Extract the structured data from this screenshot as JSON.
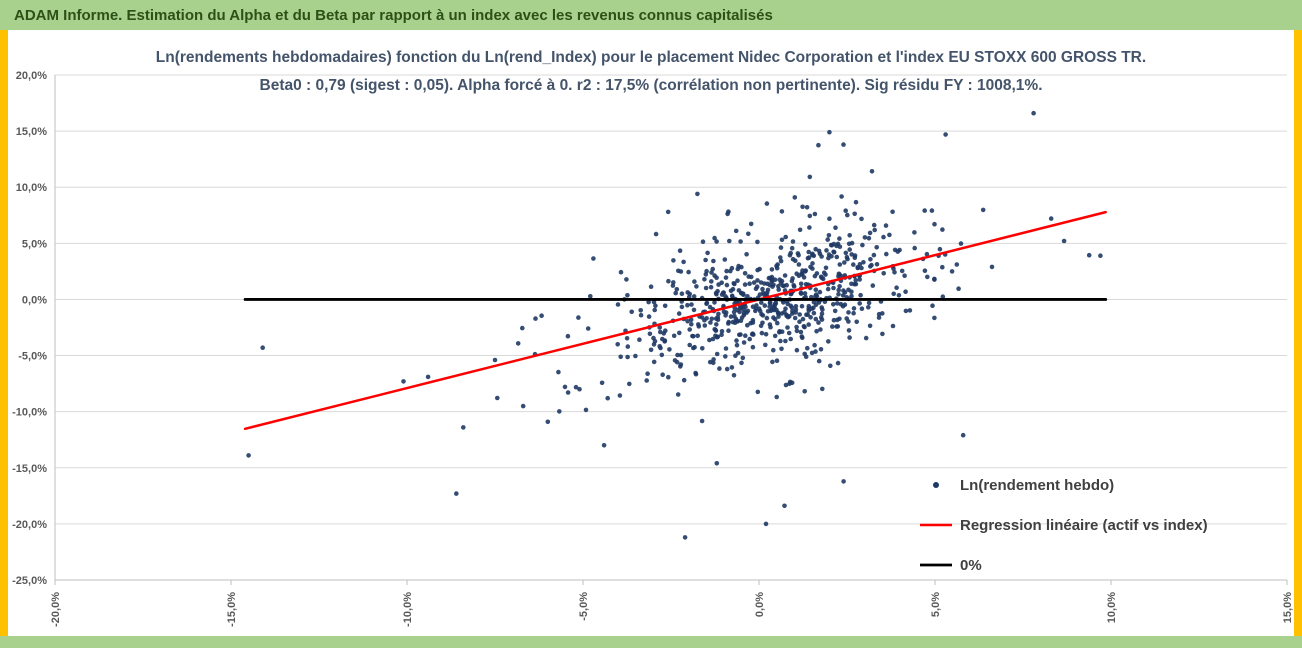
{
  "header": {
    "title": "ADAM Informe. Estimation du Alpha et du Beta par rapport à un index avec les revenus connus capitalisés"
  },
  "colors": {
    "header_bg": "#a9d18e",
    "header_text": "#2d5016",
    "side_strip": "#ffc000",
    "footer_bg": "#a9d18e",
    "title_text": "#44546a",
    "axis_text": "#595959",
    "legend_text": "#404040",
    "gridline": "#d9d9d9",
    "axis_line": "#bfbfbf",
    "point": "#1f3864",
    "regression": "#ff0000",
    "zero_line": "#000000"
  },
  "chart_data": {
    "type": "scatter",
    "title_line1": "Ln(rendements hebdomadaires) fonction du Ln(rend_Index) pour le placement Nidec Corporation et l'index EU STOXX 600 GROSS TR.",
    "title_line2": "Beta0 : 0,79 (sigest : 0,05). Alpha forcé à 0. r2 : 17,5% (corrélation non pertinente). Sig résidu FY : 1008,1%.",
    "xlabel": "",
    "ylabel": "",
    "grid": "horizontal",
    "x_axis": {
      "min": -20,
      "max": 15,
      "tick_step": 5,
      "ticks": [
        {
          "value": -20,
          "label": "-20,0%"
        },
        {
          "value": -15,
          "label": "-15,0%"
        },
        {
          "value": -10,
          "label": "-10,0%"
        },
        {
          "value": -5,
          "label": "-5,0%"
        },
        {
          "value": 0,
          "label": "0,0%"
        },
        {
          "value": 5,
          "label": "5,0%"
        },
        {
          "value": 10,
          "label": "10,0%"
        },
        {
          "value": 15,
          "label": "15,0%"
        }
      ]
    },
    "y_axis": {
      "min": -25,
      "max": 20,
      "tick_step": 5,
      "ticks": [
        {
          "value": 20,
          "label": "20,0%"
        },
        {
          "value": 15,
          "label": "15,0%"
        },
        {
          "value": 10,
          "label": "10,0%"
        },
        {
          "value": 5,
          "label": "5,0%"
        },
        {
          "value": 0,
          "label": "0,0%"
        },
        {
          "value": -5,
          "label": "-5,0%"
        },
        {
          "value": -10,
          "label": "-10,0%"
        },
        {
          "value": -15,
          "label": "-15,0%"
        },
        {
          "value": -20,
          "label": "-20,0%"
        },
        {
          "value": -25,
          "label": "-25,0%"
        }
      ]
    },
    "stats": {
      "beta0": 0.79,
      "sigest": 0.05,
      "alpha_forced": 0,
      "r2_pct": 17.5,
      "correlation_note": "corrélation non pertinente",
      "sig_residu_fy_pct": 1008.1
    },
    "series": [
      {
        "name": "Ln(rendement hebdo)",
        "kind": "scatter",
        "color": "#1f3864",
        "marker_radius": 2.3,
        "generator": {
          "seed": 7,
          "beta": 0.79,
          "alpha": 0,
          "clusters": [
            {
              "count": 520,
              "x_mean": 0.6,
              "x_sd": 1.7,
              "residual_sd": 2.6
            },
            {
              "count": 150,
              "x_mean": -0.5,
              "x_sd": 3.2,
              "residual_sd": 3.8
            },
            {
              "count": 45,
              "x_mean": 0.5,
              "x_sd": 2.2,
              "residual_sd": 6.5
            }
          ]
        },
        "outlier_points": [
          [
            -14.5,
            -13.9
          ],
          [
            -14.1,
            -4.3
          ],
          [
            -10.1,
            -7.3
          ],
          [
            -9.4,
            -6.9
          ],
          [
            -8.6,
            -17.3
          ],
          [
            -8.4,
            -11.4
          ],
          [
            -7.5,
            -5.4
          ],
          [
            -6.7,
            -9.5
          ],
          [
            -6.0,
            -10.9
          ],
          [
            -5.1,
            -8.0
          ],
          [
            -4.4,
            -13.0
          ],
          [
            -2.1,
            -21.2
          ],
          [
            0.2,
            -20.0
          ],
          [
            -1.2,
            -14.6
          ],
          [
            2.0,
            14.9
          ],
          [
            2.4,
            13.8
          ],
          [
            5.3,
            14.7
          ],
          [
            7.8,
            16.6
          ],
          [
            9.7,
            3.9
          ],
          [
            5.8,
            -12.1
          ],
          [
            8.3,
            7.2
          ]
        ]
      },
      {
        "name": "Regression linéaire (actif vs index)",
        "kind": "line",
        "color": "#ff0000",
        "width": 2.5,
        "points": [
          [
            -14.6,
            -11.53
          ],
          [
            9.85,
            7.78
          ]
        ]
      },
      {
        "name": "0%",
        "kind": "line",
        "color": "#000000",
        "width": 2.8,
        "points": [
          [
            -14.6,
            0
          ],
          [
            9.85,
            0
          ]
        ]
      }
    ],
    "legend": {
      "position": "inside-bottom-right",
      "items": [
        "Ln(rendement hebdo)",
        "Regression linéaire (actif vs index)",
        "0%"
      ]
    }
  }
}
